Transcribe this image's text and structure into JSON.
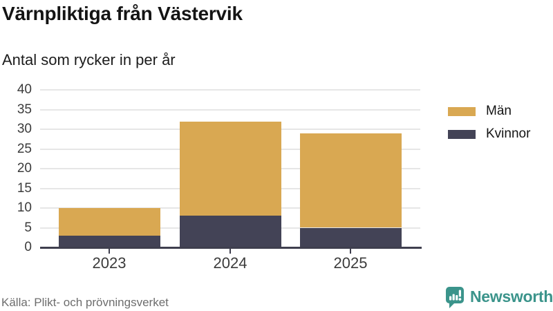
{
  "header": {
    "title": "Värnpliktiga från Västervik",
    "subtitle": "Antal som rycker in per år"
  },
  "footer": {
    "source": "Källa: Plikt- och prövningsverket",
    "brand": "Newsworthy"
  },
  "colors": {
    "men": "#d9a852",
    "women": "#434356",
    "grid": "#e6e6e6",
    "axis": "#3f3f4e",
    "brand_teal": "#3b948b"
  },
  "legend": [
    {
      "label": "Män",
      "color": "#d9a852"
    },
    {
      "label": "Kvinnor",
      "color": "#434356"
    }
  ],
  "chart_data": {
    "type": "bar",
    "stacked": true,
    "title": "Värnpliktiga från Västervik",
    "subtitle": "Antal som rycker in per år",
    "categories": [
      "2023",
      "2024",
      "2025"
    ],
    "series": [
      {
        "name": "Kvinnor",
        "values": [
          3,
          8,
          5
        ],
        "color": "#434356"
      },
      {
        "name": "Män",
        "values": [
          7,
          24,
          24
        ],
        "color": "#d9a852"
      }
    ],
    "stack_totals": [
      10,
      32,
      29
    ],
    "xlabel": "",
    "ylabel": "",
    "ylim": [
      0,
      40
    ],
    "yticks": [
      0,
      5,
      10,
      15,
      20,
      25,
      30,
      35,
      40
    ],
    "grid": true,
    "legend_position": "right",
    "legend_order": [
      "Män",
      "Kvinnor"
    ]
  }
}
